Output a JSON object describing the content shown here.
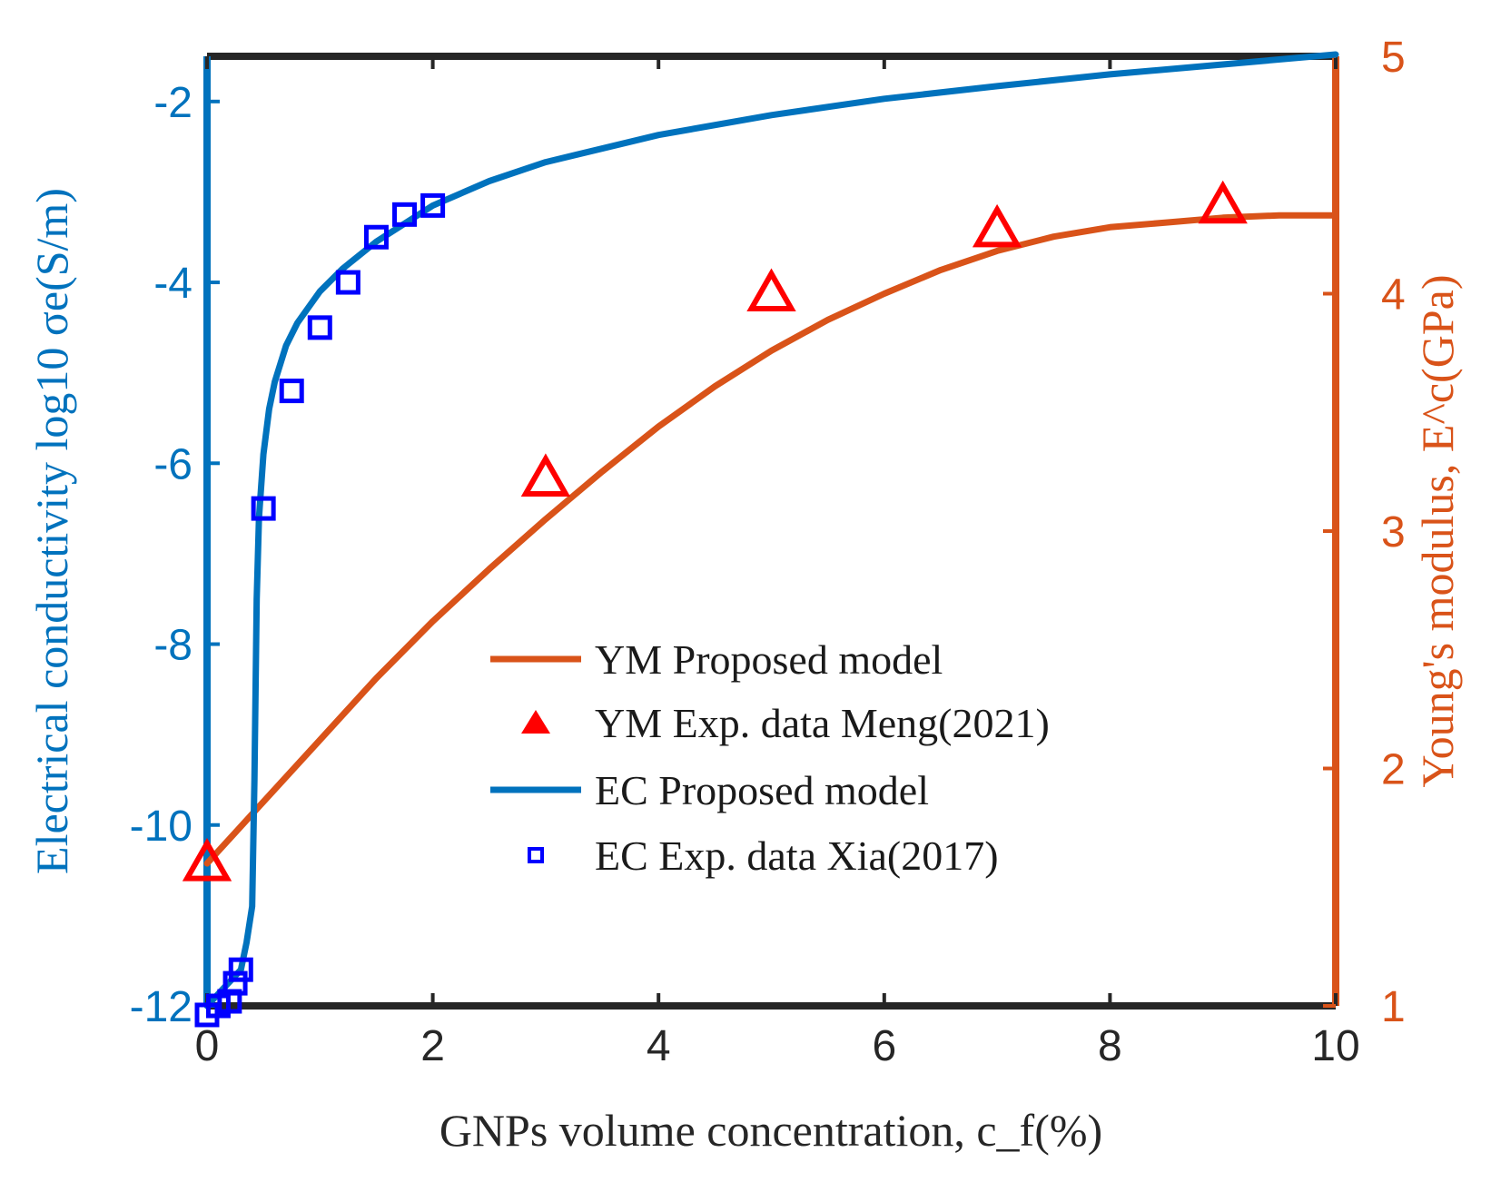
{
  "chart_data": {
    "type": "line",
    "xlabel": "GNPs volume concentration, c_f(%)",
    "x_ticks": [
      "0",
      "2",
      "4",
      "6",
      "8",
      "10"
    ],
    "xlim": [
      0,
      10
    ],
    "left_axis": {
      "label": "Electrical conductivity log10 σe(S/m)",
      "ticks": [
        "-2",
        "-4",
        "-6",
        "-8",
        "-10",
        "-12"
      ],
      "ylim": [
        -12,
        -1.5
      ],
      "color": "#0072BD"
    },
    "right_axis": {
      "label": "Young's modulus, E^c(GPa)",
      "ticks": [
        "5",
        "4",
        "3",
        "2",
        "1"
      ],
      "ylim": [
        1,
        5
      ],
      "color": "#D95319"
    },
    "grid": false,
    "legend_position": "lower-right",
    "series": [
      {
        "name": "YM Proposed model",
        "axis": "right",
        "kind": "line",
        "color": "#D95319",
        "x": [
          0,
          0.5,
          1,
          1.5,
          2,
          2.5,
          3,
          3.5,
          4,
          4.5,
          5,
          5.5,
          6,
          6.5,
          7,
          7.5,
          8,
          8.5,
          9,
          9.5,
          10
        ],
        "y": [
          1.6,
          1.86,
          2.12,
          2.38,
          2.62,
          2.84,
          3.05,
          3.25,
          3.44,
          3.61,
          3.76,
          3.89,
          4.0,
          4.1,
          4.18,
          4.24,
          4.28,
          4.3,
          4.32,
          4.33,
          4.33
        ]
      },
      {
        "name": "YM Exp. data Meng(2021)",
        "axis": "right",
        "kind": "scatter",
        "marker": "triangle",
        "color": "#FF0000",
        "x": [
          0,
          3,
          5,
          7,
          9
        ],
        "y": [
          1.6,
          3.22,
          4.0,
          4.27,
          4.37
        ]
      },
      {
        "name": "EC Proposed model",
        "axis": "left",
        "kind": "line",
        "color": "#0072BD",
        "x": [
          0,
          0.3,
          0.35,
          0.4,
          0.42,
          0.44,
          0.46,
          0.5,
          0.55,
          0.6,
          0.7,
          0.8,
          1.0,
          1.2,
          1.5,
          2,
          2.5,
          3,
          4,
          5,
          6,
          7,
          8,
          9,
          10
        ],
        "y": [
          -12,
          -11.6,
          -11.3,
          -10.9,
          -9.5,
          -7.5,
          -6.6,
          -5.9,
          -5.4,
          -5.1,
          -4.7,
          -4.45,
          -4.1,
          -3.85,
          -3.55,
          -3.15,
          -2.88,
          -2.67,
          -2.37,
          -2.15,
          -1.97,
          -1.83,
          -1.7,
          -1.59,
          -1.48
        ]
      },
      {
        "name": "EC Exp. data Xia(2017)",
        "axis": "left",
        "kind": "scatter",
        "marker": "square",
        "color": "#0000FF",
        "x": [
          0,
          0.1,
          0.2,
          0.25,
          0.3,
          0.5,
          0.75,
          1.0,
          1.25,
          1.5,
          1.75,
          2.0
        ],
        "y": [
          -12.1,
          -12.0,
          -11.95,
          -11.75,
          -11.6,
          -6.5,
          -5.2,
          -4.5,
          -4.0,
          -3.5,
          -3.25,
          -3.15
        ]
      }
    ]
  }
}
